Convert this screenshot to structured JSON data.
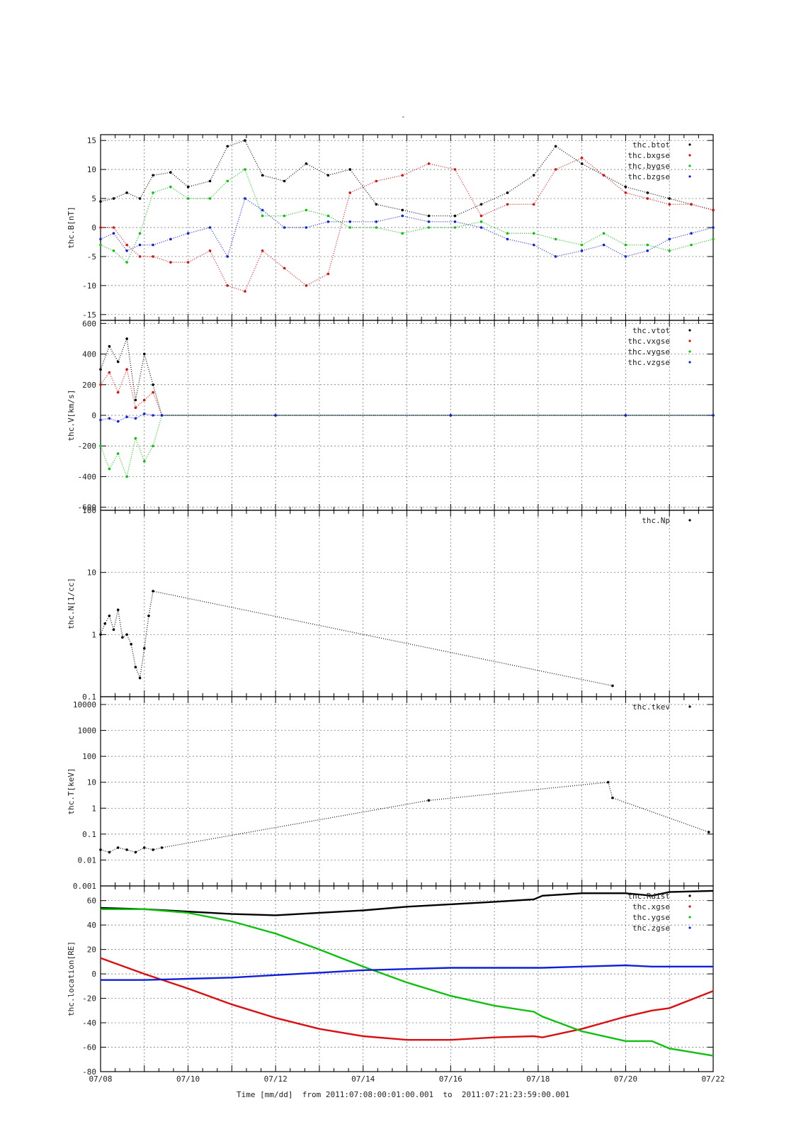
{
  "page": {
    "title_mark": "-"
  },
  "xaxis": {
    "label": "Time [mm/dd]  from 2011:07:08:00:01:00.001  to  2011:07:21:23:59:00.001",
    "range": [
      "07/08",
      "07/22"
    ],
    "tick_labels": [
      "07/08",
      "07/10",
      "07/12",
      "07/14",
      "07/16",
      "07/18",
      "07/20",
      "07/22"
    ],
    "tick_days": [
      8,
      10,
      12,
      14,
      16,
      18,
      20,
      22
    ]
  },
  "colors": {
    "black": "#000000",
    "red": "#d81010",
    "green": "#10c010",
    "blue": "#1020d8"
  },
  "chart_data": [
    {
      "type": "scatter",
      "id": "B",
      "ylabel": "thc.B[nT]",
      "ylim": [
        -16,
        16
      ],
      "yticks": [
        -15,
        -10,
        -5,
        0,
        5,
        10,
        15
      ],
      "legend_position": "top-right",
      "series": [
        {
          "name": "thc.btot",
          "color": "#000000",
          "x": [
            8.0,
            8.3,
            8.6,
            8.9,
            9.2,
            9.6,
            10.0,
            10.5,
            10.9,
            11.3,
            11.7,
            12.2,
            12.7,
            13.2,
            13.7,
            14.3,
            14.9,
            15.5,
            16.1,
            16.7,
            17.3,
            17.9,
            18.4,
            19.0,
            19.5,
            20.0,
            20.5,
            21.0,
            21.5,
            22.0
          ],
          "y": [
            4.5,
            5,
            6,
            5,
            9,
            9.5,
            7,
            8,
            14,
            15,
            9,
            8,
            11,
            9,
            10,
            4,
            3,
            2,
            2,
            4,
            6,
            9,
            14,
            11,
            9,
            7,
            6,
            5,
            4,
            3
          ]
        },
        {
          "name": "thc.bxgse",
          "color": "#d81010",
          "x": [
            8.0,
            8.3,
            8.6,
            8.9,
            9.2,
            9.6,
            10.0,
            10.5,
            10.9,
            11.3,
            11.7,
            12.2,
            12.7,
            13.2,
            13.7,
            14.3,
            14.9,
            15.5,
            16.1,
            16.7,
            17.3,
            17.9,
            18.4,
            19.0,
            19.5,
            20.0,
            20.5,
            21.0,
            21.5,
            22.0
          ],
          "y": [
            0,
            0,
            -3,
            -5,
            -5,
            -6,
            -6,
            -4,
            -10,
            -11,
            -4,
            -7,
            -10,
            -8,
            6,
            8,
            9,
            11,
            10,
            2,
            4,
            4,
            10,
            12,
            9,
            6,
            5,
            4,
            4,
            3
          ]
        },
        {
          "name": "thc.bygse",
          "color": "#10c010",
          "x": [
            8.0,
            8.3,
            8.6,
            8.9,
            9.2,
            9.6,
            10.0,
            10.5,
            10.9,
            11.3,
            11.7,
            12.2,
            12.7,
            13.2,
            13.7,
            14.3,
            14.9,
            15.5,
            16.1,
            16.7,
            17.3,
            17.9,
            18.4,
            19.0,
            19.5,
            20.0,
            20.5,
            21.0,
            21.5,
            22.0
          ],
          "y": [
            -3,
            -4,
            -6,
            -1,
            6,
            7,
            5,
            5,
            8,
            10,
            2,
            2,
            3,
            2,
            0,
            0,
            -1,
            0,
            0,
            1,
            -1,
            -1,
            -2,
            -3,
            -1,
            -3,
            -3,
            -4,
            -3,
            -2
          ]
        },
        {
          "name": "thc.bzgse",
          "color": "#1020d8",
          "x": [
            8.0,
            8.3,
            8.6,
            8.9,
            9.2,
            9.6,
            10.0,
            10.5,
            10.9,
            11.3,
            11.7,
            12.2,
            12.7,
            13.2,
            13.7,
            14.3,
            14.9,
            15.5,
            16.1,
            16.7,
            17.3,
            17.9,
            18.4,
            19.0,
            19.5,
            20.0,
            20.5,
            21.0,
            21.5,
            22.0
          ],
          "y": [
            -2,
            -1,
            -4,
            -3,
            -3,
            -2,
            -1,
            0,
            -5,
            5,
            3,
            0,
            0,
            1,
            1,
            1,
            2,
            1,
            1,
            0,
            -2,
            -3,
            -5,
            -4,
            -3,
            -5,
            -4,
            -2,
            -1,
            0
          ]
        }
      ]
    },
    {
      "type": "scatter",
      "id": "V",
      "ylabel": "thc.V[km/s]",
      "ylim": [
        -620,
        620
      ],
      "yticks": [
        -600,
        -400,
        -200,
        0,
        200,
        400,
        600
      ],
      "legend_position": "top-right",
      "series": [
        {
          "name": "thc.vtot",
          "color": "#000000",
          "x": [
            8.0,
            8.2,
            8.4,
            8.6,
            8.8,
            9.0,
            9.2,
            9.4,
            12.0,
            16.0,
            20.0,
            22.0
          ],
          "y": [
            300,
            450,
            350,
            500,
            100,
            400,
            200,
            0,
            0,
            0,
            0,
            0
          ]
        },
        {
          "name": "thc.vxgse",
          "color": "#d81010",
          "x": [
            8.0,
            8.2,
            8.4,
            8.6,
            8.8,
            9.0,
            9.2,
            9.4,
            12.0,
            16.0,
            20.0,
            22.0
          ],
          "y": [
            200,
            280,
            150,
            300,
            50,
            100,
            150,
            0,
            0,
            0,
            0,
            0
          ]
        },
        {
          "name": "thc.vygse",
          "color": "#10c010",
          "x": [
            8.0,
            8.2,
            8.4,
            8.6,
            8.8,
            9.0,
            9.2,
            9.4,
            12.0,
            16.0,
            20.0,
            22.0
          ],
          "y": [
            -200,
            -350,
            -250,
            -400,
            -150,
            -300,
            -200,
            0,
            0,
            0,
            0,
            0
          ]
        },
        {
          "name": "thc.vzgse",
          "color": "#1020d8",
          "x": [
            8.0,
            8.2,
            8.4,
            8.6,
            8.8,
            9.0,
            9.2,
            9.4,
            12.0,
            16.0,
            20.0,
            22.0
          ],
          "y": [
            -30,
            -20,
            -40,
            -10,
            -20,
            10,
            0,
            0,
            0,
            0,
            0,
            0
          ]
        }
      ]
    },
    {
      "type": "scatter",
      "id": "N",
      "ylabel": "thc.N[1/cc]",
      "yscale": "log",
      "ylim": [
        0.1,
        100
      ],
      "yticks": [
        0.1,
        1,
        10,
        100
      ],
      "ytick_labels": [
        "0.1",
        "1",
        "10",
        "100"
      ],
      "legend_position": "top-right",
      "series": [
        {
          "name": "thc.Np",
          "color": "#000000",
          "x": [
            8.0,
            8.1,
            8.2,
            8.3,
            8.4,
            8.5,
            8.6,
            8.7,
            8.8,
            8.9,
            9.0,
            9.1,
            9.2,
            19.7
          ],
          "y": [
            1.0,
            1.5,
            2.0,
            1.2,
            2.5,
            0.9,
            1.0,
            0.7,
            0.3,
            0.2,
            0.6,
            2.0,
            5.0,
            0.15
          ]
        }
      ]
    },
    {
      "type": "scatter",
      "id": "T",
      "ylabel": "thc.T[keV]",
      "yscale": "log",
      "ylim": [
        0.001,
        20000
      ],
      "yticks": [
        0.001,
        0.01,
        0.1,
        1,
        10,
        100,
        1000,
        10000
      ],
      "ytick_labels": [
        "0.001",
        "0.01",
        "0.1",
        "1",
        "10",
        "100",
        "1000",
        "10000"
      ],
      "legend_position": "top-right",
      "series": [
        {
          "name": "thc.tkev",
          "color": "#000000",
          "x": [
            8.0,
            8.2,
            8.4,
            8.6,
            8.8,
            9.0,
            9.2,
            9.4,
            15.5,
            19.6,
            19.7,
            21.9
          ],
          "y": [
            0.025,
            0.02,
            0.03,
            0.025,
            0.02,
            0.03,
            0.025,
            0.03,
            2,
            10,
            2.5,
            0.12
          ]
        }
      ]
    },
    {
      "type": "line",
      "id": "location",
      "ylabel": "thc.location[RE]",
      "ylim": [
        -80,
        72
      ],
      "yticks": [
        -80,
        -60,
        -40,
        -20,
        0,
        20,
        40,
        60
      ],
      "legend_position": "top-right",
      "series": [
        {
          "name": "thc.Rdist",
          "color": "#000000",
          "x": [
            8.0,
            9.0,
            10.0,
            11.0,
            12.0,
            13.0,
            14.0,
            15.0,
            16.0,
            17.0,
            17.9,
            18.1,
            19.0,
            20.0,
            20.6,
            21.0,
            22.0
          ],
          "y": [
            54,
            53,
            51,
            49,
            48,
            50,
            52,
            55,
            57,
            59,
            61,
            64,
            66,
            66,
            64,
            67,
            68
          ]
        },
        {
          "name": "thc.xgse",
          "color": "#d81010",
          "x": [
            8.0,
            9.0,
            10.0,
            11.0,
            12.0,
            13.0,
            14.0,
            15.0,
            16.0,
            17.0,
            17.9,
            18.1,
            19.0,
            20.0,
            20.6,
            21.0,
            22.0
          ],
          "y": [
            13,
            0,
            -12,
            -25,
            -36,
            -45,
            -51,
            -54,
            -54,
            -52,
            -51,
            -52,
            -45,
            -35,
            -30,
            -28,
            -14
          ]
        },
        {
          "name": "thc.ygse",
          "color": "#10c010",
          "x": [
            8.0,
            9.0,
            10.0,
            11.0,
            12.0,
            13.0,
            14.0,
            15.0,
            16.0,
            17.0,
            17.9,
            18.1,
            19.0,
            20.0,
            20.6,
            21.0,
            22.0
          ],
          "y": [
            53,
            53,
            50,
            43,
            33,
            20,
            6,
            -7,
            -18,
            -26,
            -31,
            -35,
            -47,
            -55,
            -55,
            -61,
            -67
          ]
        },
        {
          "name": "thc.zgse",
          "color": "#1020d8",
          "x": [
            8.0,
            9.0,
            10.0,
            11.0,
            12.0,
            13.0,
            14.0,
            15.0,
            16.0,
            17.0,
            17.9,
            18.1,
            19.0,
            20.0,
            20.6,
            21.0,
            22.0
          ],
          "y": [
            -5,
            -5,
            -4,
            -3,
            -1,
            1,
            3,
            4,
            5,
            5,
            5,
            5,
            6,
            7,
            6,
            6,
            6
          ]
        }
      ]
    }
  ]
}
